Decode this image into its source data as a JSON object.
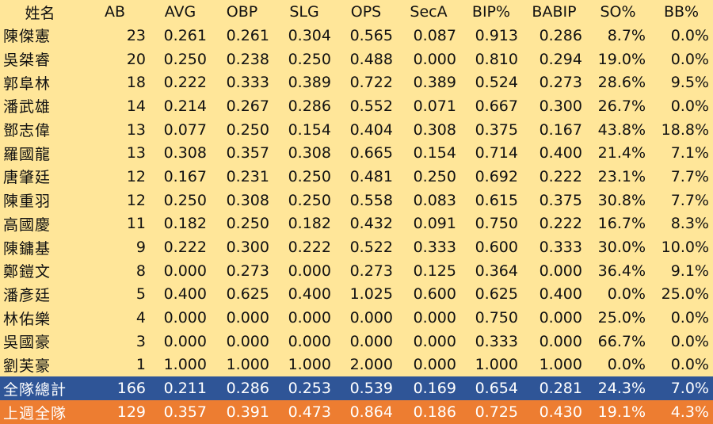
{
  "headers": [
    "姓名",
    "AB",
    "AVG",
    "OBP",
    "SLG",
    "OPS",
    "SecA",
    "BIP%",
    "BABIP",
    "SO%",
    "BB%"
  ],
  "players": [
    [
      "陳傑憲",
      "23",
      "0.261",
      "0.261",
      "0.304",
      "0.565",
      "0.087",
      "0.913",
      "0.286",
      "8.7%",
      "0.0%"
    ],
    [
      "吳桀睿",
      "20",
      "0.250",
      "0.238",
      "0.250",
      "0.488",
      "0.000",
      "0.810",
      "0.294",
      "19.0%",
      "0.0%"
    ],
    [
      "郭阜林",
      "18",
      "0.222",
      "0.333",
      "0.389",
      "0.722",
      "0.389",
      "0.524",
      "0.273",
      "28.6%",
      "9.5%"
    ],
    [
      "潘武雄",
      "14",
      "0.214",
      "0.267",
      "0.286",
      "0.552",
      "0.071",
      "0.667",
      "0.300",
      "26.7%",
      "0.0%"
    ],
    [
      "鄧志偉",
      "13",
      "0.077",
      "0.250",
      "0.154",
      "0.404",
      "0.308",
      "0.375",
      "0.167",
      "43.8%",
      "18.8%"
    ],
    [
      "羅國龍",
      "13",
      "0.308",
      "0.357",
      "0.308",
      "0.665",
      "0.154",
      "0.714",
      "0.400",
      "21.4%",
      "7.1%"
    ],
    [
      "唐肇廷",
      "12",
      "0.167",
      "0.231",
      "0.250",
      "0.481",
      "0.250",
      "0.692",
      "0.222",
      "23.1%",
      "7.7%"
    ],
    [
      "陳重羽",
      "12",
      "0.250",
      "0.308",
      "0.250",
      "0.558",
      "0.083",
      "0.615",
      "0.375",
      "30.8%",
      "7.7%"
    ],
    [
      "高國慶",
      "11",
      "0.182",
      "0.250",
      "0.182",
      "0.432",
      "0.091",
      "0.750",
      "0.222",
      "16.7%",
      "8.3%"
    ],
    [
      "陳鏞基",
      "9",
      "0.222",
      "0.300",
      "0.222",
      "0.522",
      "0.333",
      "0.600",
      "0.333",
      "30.0%",
      "10.0%"
    ],
    [
      "鄭鎧文",
      "8",
      "0.000",
      "0.273",
      "0.000",
      "0.273",
      "0.125",
      "0.364",
      "0.000",
      "36.4%",
      "9.1%"
    ],
    [
      "潘彥廷",
      "5",
      "0.400",
      "0.625",
      "0.400",
      "1.025",
      "0.600",
      "0.625",
      "0.400",
      "0.0%",
      "25.0%"
    ],
    [
      "林佑樂",
      "4",
      "0.000",
      "0.000",
      "0.000",
      "0.000",
      "0.000",
      "0.750",
      "0.000",
      "25.0%",
      "0.0%"
    ],
    [
      "吳國豪",
      "3",
      "0.000",
      "0.000",
      "0.000",
      "0.000",
      "0.000",
      "0.333",
      "0.000",
      "66.7%",
      "0.0%"
    ],
    [
      "劉芙豪",
      "1",
      "1.000",
      "1.000",
      "1.000",
      "2.000",
      "0.000",
      "1.000",
      "1.000",
      "0.0%",
      "0.0%"
    ]
  ],
  "team_total": [
    "全隊總計",
    "166",
    "0.211",
    "0.286",
    "0.253",
    "0.539",
    "0.169",
    "0.654",
    "0.281",
    "24.3%",
    "7.0%"
  ],
  "last_week": [
    "上週全隊",
    "129",
    "0.357",
    "0.391",
    "0.473",
    "0.864",
    "0.186",
    "0.725",
    "0.430",
    "19.1%",
    "4.3%"
  ],
  "colors": {
    "background": "#ffe699",
    "team_total_row": "#2f5597",
    "last_week_row": "#ed7d31",
    "text": "#111111",
    "summary_text": "#ffffff"
  }
}
